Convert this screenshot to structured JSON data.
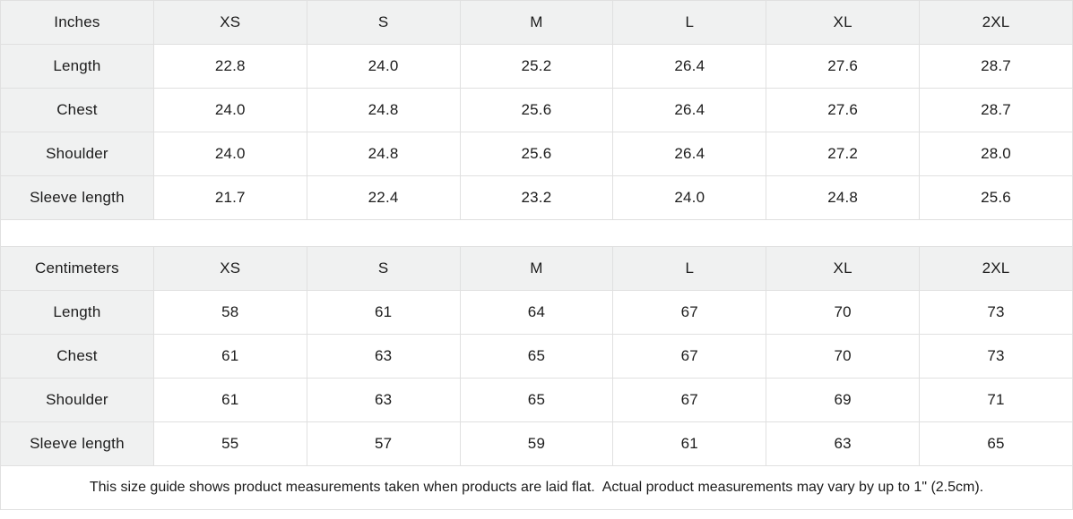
{
  "chart_data": [
    {
      "type": "table",
      "unit_label": "Inches",
      "sizes": [
        "XS",
        "S",
        "M",
        "L",
        "XL",
        "2XL"
      ],
      "rows": [
        {
          "label": "Length",
          "values": [
            "22.8",
            "24.0",
            "25.2",
            "26.4",
            "27.6",
            "28.7"
          ]
        },
        {
          "label": "Chest",
          "values": [
            "24.0",
            "24.8",
            "25.6",
            "26.4",
            "27.6",
            "28.7"
          ]
        },
        {
          "label": "Shoulder",
          "values": [
            "24.0",
            "24.8",
            "25.6",
            "26.4",
            "27.2",
            "28.0"
          ]
        },
        {
          "label": "Sleeve length",
          "values": [
            "21.7",
            "22.4",
            "23.2",
            "24.0",
            "24.8",
            "25.6"
          ]
        }
      ]
    },
    {
      "type": "table",
      "unit_label": "Centimeters",
      "sizes": [
        "XS",
        "S",
        "M",
        "L",
        "XL",
        "2XL"
      ],
      "rows": [
        {
          "label": "Length",
          "values": [
            "58",
            "61",
            "64",
            "67",
            "70",
            "73"
          ]
        },
        {
          "label": "Chest",
          "values": [
            "61",
            "63",
            "65",
            "67",
            "70",
            "73"
          ]
        },
        {
          "label": "Shoulder",
          "values": [
            "61",
            "63",
            "65",
            "67",
            "69",
            "71"
          ]
        },
        {
          "label": "Sleeve length",
          "values": [
            "55",
            "57",
            "59",
            "61",
            "63",
            "65"
          ]
        }
      ]
    }
  ],
  "footer": {
    "note": "This size guide shows product measurements taken when products are laid flat.  Actual product measurements may vary by up to 1\" (2.5cm)."
  },
  "colors": {
    "header_bg": "#f0f1f1",
    "row_bg": "#ffffff",
    "border": "#e0e0e0",
    "text": "#1c1c1c"
  }
}
